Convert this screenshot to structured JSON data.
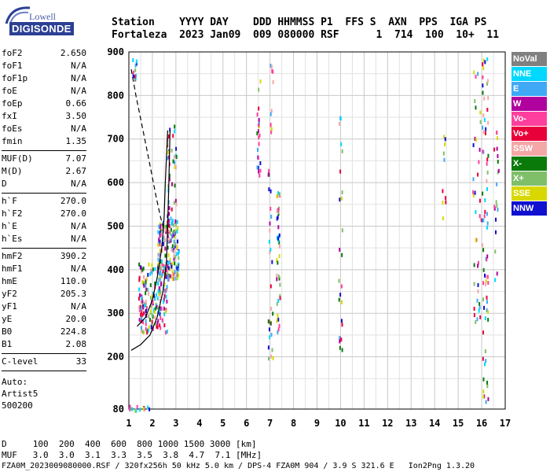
{
  "logo": {
    "top_text": "Lowell",
    "bottom_text": "DIGISONDE"
  },
  "header": {
    "line1": "Station    YYYY DAY    DDD HHMMSS P1  FFS S  AXN  PPS  IGA PS",
    "line2": "Fortaleza  2023 Jan09  009 080000 RSF      1  714  100  10+  11"
  },
  "params": [
    {
      "name": "foF2",
      "value": "2.650"
    },
    {
      "name": "foF1",
      "value": "N/A"
    },
    {
      "name": "foF1p",
      "value": "N/A"
    },
    {
      "name": "foE",
      "value": "N/A"
    },
    {
      "name": "foEp",
      "value": "0.66"
    },
    {
      "name": "fxI",
      "value": "3.50"
    },
    {
      "name": "foEs",
      "value": "N/A"
    },
    {
      "name": "fmin",
      "value": "1.35"
    },
    {
      "sep": true
    },
    {
      "name": "MUF(D)",
      "value": "7.07"
    },
    {
      "name": "M(D)",
      "value": "2.67"
    },
    {
      "name": "D",
      "value": "N/A"
    },
    {
      "sep": true
    },
    {
      "name": "h`F",
      "value": "270.0"
    },
    {
      "name": "h`F2",
      "value": "270.0"
    },
    {
      "name": "h`E",
      "value": "N/A"
    },
    {
      "name": "h`Es",
      "value": "N/A"
    },
    {
      "sep": true
    },
    {
      "name": "hmF2",
      "value": "390.2"
    },
    {
      "name": "hmF1",
      "value": "N/A"
    },
    {
      "name": "hmE",
      "value": "110.0"
    },
    {
      "name": "yF2",
      "value": "205.3"
    },
    {
      "name": "yF1",
      "value": "N/A"
    },
    {
      "name": "yE",
      "value": "20.0"
    },
    {
      "name": "B0",
      "value": "224.8"
    },
    {
      "name": "B1",
      "value": "2.08"
    },
    {
      "sep": true
    },
    {
      "name": "C-level",
      "value": "33"
    },
    {
      "sep": true
    }
  ],
  "auto": [
    "Auto:",
    "Artist5",
    "500200"
  ],
  "legend": [
    {
      "label": "NoVal",
      "color": "#808080"
    },
    {
      "label": "NNE",
      "color": "#00d8ff"
    },
    {
      "label": "E",
      "color": "#3fa9f5"
    },
    {
      "label": "W",
      "color": "#b0009e"
    },
    {
      "label": "Vo-",
      "color": "#ff3f9e"
    },
    {
      "label": "Vo+",
      "color": "#e8003a"
    },
    {
      "label": "SSW",
      "color": "#f4a7a7"
    },
    {
      "label": "X-",
      "color": "#0a7a0a"
    },
    {
      "label": "X+",
      "color": "#7fbf6a"
    },
    {
      "label": "SSE",
      "color": "#d8d800"
    },
    {
      "label": "NNW",
      "color": "#1010d0"
    }
  ],
  "chart_data": {
    "type": "scatter",
    "xlim": [
      1,
      17
    ],
    "ylim": [
      80,
      900
    ],
    "x_ticks": [
      "1",
      "2",
      "3",
      "4",
      "5",
      "6",
      "7",
      "8",
      "9",
      "10",
      "11",
      "12",
      "13",
      "14",
      "15",
      "16",
      "17"
    ],
    "y_ticks": [
      "80",
      "200",
      "300",
      "400",
      "500",
      "600",
      "700",
      "800",
      "900"
    ],
    "profile_curve": [
      [
        1.1,
        215
      ],
      [
        1.5,
        228
      ],
      [
        1.9,
        250
      ],
      [
        2.2,
        290
      ],
      [
        2.45,
        350
      ],
      [
        2.6,
        420
      ],
      [
        2.65,
        500
      ],
      [
        2.7,
        600
      ],
      [
        2.75,
        720
      ]
    ],
    "trace_curve": [
      [
        1.35,
        270
      ],
      [
        1.7,
        290
      ],
      [
        2.0,
        330
      ],
      [
        2.2,
        380
      ],
      [
        2.4,
        450
      ],
      [
        2.5,
        520
      ],
      [
        2.55,
        600
      ],
      [
        2.65,
        720
      ]
    ],
    "extrapolation_dashed": [
      [
        1.1,
        860
      ],
      [
        1.3,
        800
      ],
      [
        1.6,
        720
      ],
      [
        1.9,
        640
      ],
      [
        2.15,
        570
      ],
      [
        2.35,
        520
      ],
      [
        2.5,
        490
      ]
    ]
  },
  "footer": {
    "line1": "D     100  200  400  600  800 1000 1500 3000 [km]",
    "line2": "MUF   3.0  3.0  3.1  3.3  3.5  3.8  4.7  7.1 [MHz]",
    "line3": "FZA0M_2023009080000.RSF / 320fx256h 50 kHz 5.0 km / DPS-4 FZA0M 904 / 3.9 S 321.6 E   Ion2Png 1.3.20"
  }
}
